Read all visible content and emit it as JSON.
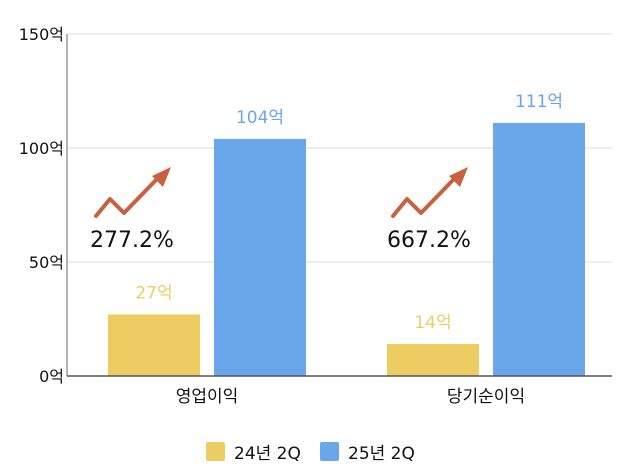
{
  "chart_data": {
    "type": "bar",
    "categories": [
      "영업이익",
      "당기순이익"
    ],
    "series": [
      {
        "name": "24년 2Q",
        "values": [
          27,
          14
        ],
        "labels": [
          "27억",
          "14억"
        ],
        "color": "#EDCD62"
      },
      {
        "name": "25년 2Q",
        "values": [
          104,
          111
        ],
        "labels": [
          "104억",
          "111억"
        ],
        "color": "#6AA6EA"
      }
    ],
    "growth": [
      "277.2%",
      "667.2%"
    ],
    "ylim": [
      0,
      150
    ],
    "yticks": [
      0,
      50,
      100,
      150
    ],
    "ytick_labels": [
      "0억",
      "50억",
      "100억",
      "150억"
    ],
    "grid": true,
    "legend_position": "bottom-center",
    "arrow_color": "#C9603E"
  }
}
